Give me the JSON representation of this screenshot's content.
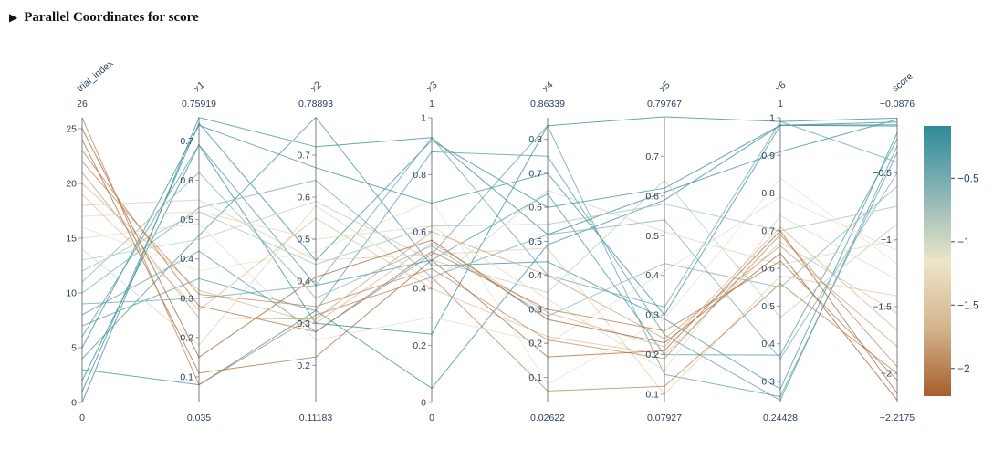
{
  "page": {
    "title": "Parallel Coordinates for score",
    "caret_icon": "triangle-right-icon"
  },
  "chart_data": {
    "type": "parallel_coordinates",
    "title": "Parallel Coordinates for score",
    "dimensions": [
      {
        "name": "trial_index",
        "range": [
          0,
          26
        ],
        "min_label": "0",
        "max_label": "26",
        "ticks": [
          0,
          5,
          10,
          15,
          20,
          25
        ]
      },
      {
        "name": "x1",
        "range": [
          0.035,
          0.75919
        ],
        "min_label": "0.035",
        "max_label": "0.75919",
        "ticks": [
          0.1,
          0.2,
          0.3,
          0.4,
          0.5,
          0.6,
          0.7
        ]
      },
      {
        "name": "x2",
        "range": [
          0.11183,
          0.78893
        ],
        "min_label": "0.11183",
        "max_label": "0.78893",
        "ticks": [
          0.2,
          0.3,
          0.4,
          0.5,
          0.6,
          0.7
        ]
      },
      {
        "name": "x3",
        "range": [
          0,
          1
        ],
        "min_label": "0",
        "max_label": "1",
        "ticks": [
          0,
          0.2,
          0.4,
          0.6,
          0.8,
          1
        ]
      },
      {
        "name": "x4",
        "range": [
          0.02622,
          0.86339
        ],
        "min_label": "0.02622",
        "max_label": "0.86339",
        "ticks": [
          0.1,
          0.2,
          0.3,
          0.4,
          0.5,
          0.6,
          0.7,
          0.8
        ]
      },
      {
        "name": "x5",
        "range": [
          0.07927,
          0.79767
        ],
        "min_label": "0.07927",
        "max_label": "0.79767",
        "ticks": [
          0.1,
          0.2,
          0.3,
          0.4,
          0.5,
          0.6,
          0.7
        ]
      },
      {
        "name": "x6",
        "range": [
          0.24428,
          1
        ],
        "min_label": "0.24428",
        "max_label": "1",
        "ticks": [
          0.3,
          0.4,
          0.5,
          0.6,
          0.7,
          0.8,
          0.9,
          1
        ]
      },
      {
        "name": "score",
        "range": [
          -2.2175,
          -0.0876
        ],
        "min_label": "−2.2175",
        "max_label": "−0.0876",
        "ticks": [
          -2,
          -1.5,
          -1,
          -0.5
        ]
      }
    ],
    "colorbar": {
      "ticks": [
        -2,
        -1.5,
        -1,
        -0.5
      ],
      "tick_labels": [
        "−2",
        "−1.5",
        "−1",
        "−0.5"
      ],
      "range": [
        -2.2175,
        -0.0876
      ],
      "colorscale": [
        "#a65e2e",
        "#d4b48c",
        "#ede5c8",
        "#8ab5b5",
        "#2e8a99"
      ]
    },
    "lines": [
      [
        0,
        0.76,
        0.72,
        0.93,
        0.52,
        0.61,
        0.91,
        -0.1
      ],
      [
        1,
        0.745,
        0.45,
        0.92,
        0.6,
        0.62,
        0.98,
        -0.12
      ],
      [
        2,
        0.69,
        0.3,
        0.24,
        0.84,
        0.8,
        0.99,
        -0.09
      ],
      [
        3,
        0.08,
        0.33,
        0.05,
        0.49,
        0.59,
        0.98,
        -0.15
      ],
      [
        4,
        0.46,
        0.79,
        0.48,
        0.44,
        0.29,
        0.28,
        -0.2
      ],
      [
        5,
        0.74,
        0.67,
        0.7,
        0.7,
        0.3,
        0.98,
        -0.14
      ],
      [
        6,
        0.69,
        0.39,
        0.5,
        0.64,
        0.2,
        0.37,
        -0.25
      ],
      [
        7,
        0.35,
        0.33,
        0.88,
        0.75,
        0.25,
        0.25,
        -0.3
      ],
      [
        8,
        0.42,
        0.28,
        0.52,
        0.84,
        0.15,
        0.26,
        -0.35
      ],
      [
        9,
        0.3,
        0.39,
        0.93,
        0.4,
        0.32,
        0.99,
        -0.42
      ],
      [
        10,
        0.53,
        0.64,
        0.44,
        0.52,
        0.54,
        0.36,
        -0.5
      ],
      [
        11,
        0.62,
        0.36,
        0.55,
        0.28,
        0.43,
        0.55,
        -0.6
      ],
      [
        12,
        0.52,
        0.44,
        0.62,
        0.55,
        0.58,
        0.7,
        -0.75
      ],
      [
        13,
        0.45,
        0.59,
        0.5,
        0.35,
        0.64,
        0.47,
        -0.88
      ],
      [
        14,
        0.18,
        0.58,
        0.42,
        0.65,
        0.51,
        0.61,
        -1.0
      ],
      [
        15,
        0.49,
        0.26,
        0.3,
        0.2,
        0.41,
        0.79,
        -1.08
      ],
      [
        16,
        0.37,
        0.47,
        0.71,
        0.08,
        0.29,
        0.84,
        -1.18
      ],
      [
        17,
        0.52,
        0.5,
        0.62,
        0.33,
        0.16,
        0.74,
        -1.3
      ],
      [
        18,
        0.55,
        0.45,
        0.52,
        0.48,
        0.1,
        0.58,
        -1.42
      ],
      [
        19,
        0.27,
        0.55,
        0.4,
        0.22,
        0.2,
        0.67,
        -1.55
      ],
      [
        20,
        0.32,
        0.3,
        0.56,
        0.29,
        0.22,
        0.71,
        -1.68
      ],
      [
        21,
        0.25,
        0.31,
        0.6,
        0.4,
        0.24,
        0.66,
        -1.8
      ],
      [
        22,
        0.31,
        0.34,
        0.47,
        0.21,
        0.19,
        0.69,
        -1.95
      ],
      [
        23,
        0.28,
        0.28,
        0.53,
        0.3,
        0.26,
        0.62,
        -2.05
      ],
      [
        24,
        0.11,
        0.22,
        0.5,
        0.16,
        0.21,
        0.7,
        -2.15
      ],
      [
        25,
        0.15,
        0.41,
        0.57,
        0.27,
        0.23,
        0.64,
        -2.2
      ],
      [
        26,
        0.08,
        0.32,
        0.44,
        0.06,
        0.12,
        0.56,
        -2.0
      ]
    ]
  }
}
